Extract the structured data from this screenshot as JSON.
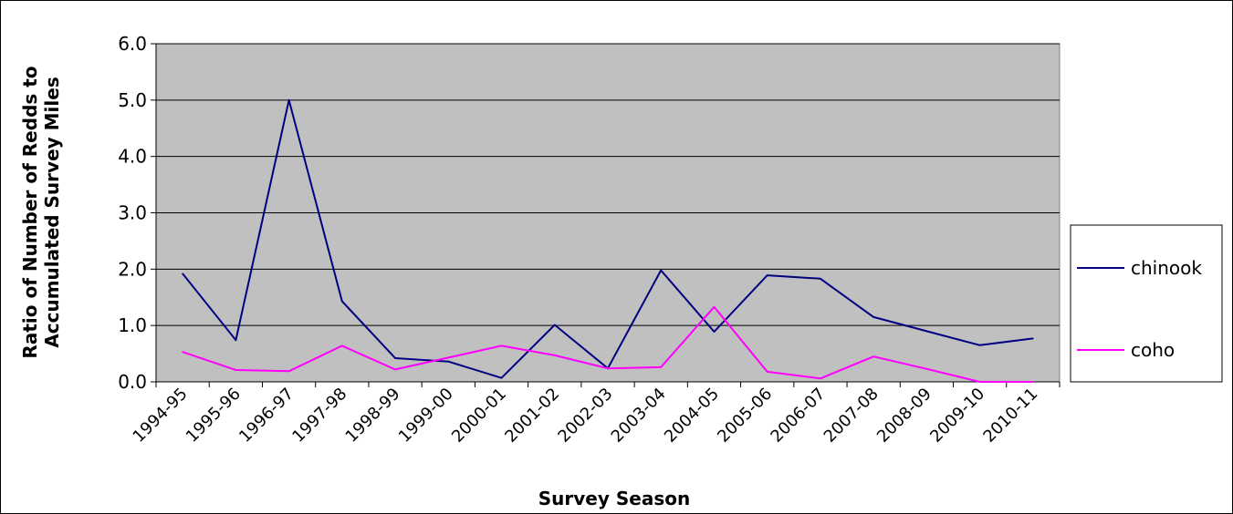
{
  "chart_data": {
    "type": "line",
    "title": "",
    "xlabel": "Survey Season",
    "ylabel_line1": "Ratio of Number of Redds to",
    "ylabel_line2": "Accumulated Survey Miles",
    "categories": [
      "1994-95",
      "1995-96",
      "1996-97",
      "1997-98",
      "1998-99",
      "1999-00",
      "2000-01",
      "2001-02",
      "2002-03",
      "2003-04",
      "2004-05",
      "2005-06",
      "2006-07",
      "2007-08",
      "2008-09",
      "2009-10",
      "2010-11"
    ],
    "ylim": [
      0,
      6
    ],
    "yticks": [
      "0.0",
      "1.0",
      "2.0",
      "3.0",
      "4.0",
      "5.0",
      "6.0"
    ],
    "grid": true,
    "legend_position": "right",
    "series": [
      {
        "name": "chinook",
        "color": "#000080",
        "values": [
          1.92,
          0.74,
          5.0,
          1.43,
          0.42,
          0.36,
          0.07,
          1.01,
          0.24,
          1.98,
          0.89,
          1.89,
          1.83,
          1.15,
          0.9,
          0.65,
          0.77
        ]
      },
      {
        "name": "coho",
        "color": "#FF00FF",
        "values": [
          0.53,
          0.21,
          0.19,
          0.64,
          0.22,
          0.43,
          0.64,
          0.47,
          0.24,
          0.26,
          1.33,
          0.18,
          0.06,
          0.45,
          0.23,
          0.0,
          0.0
        ]
      }
    ],
    "colors": {
      "plot_background": "#C0C0C0",
      "gridline": "#000000"
    }
  }
}
